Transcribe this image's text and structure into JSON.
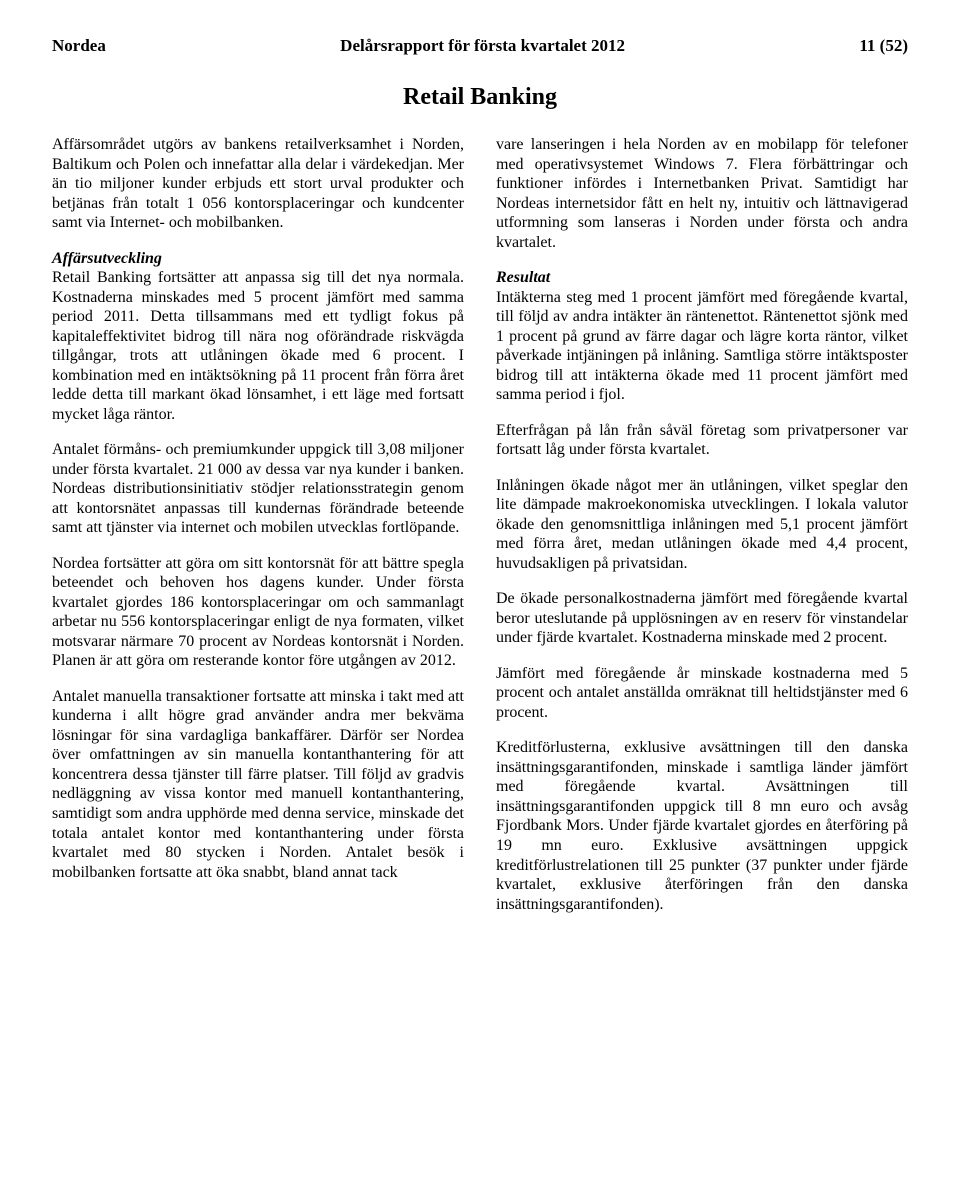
{
  "header": {
    "company": "Nordea",
    "title": "Delårsrapport för första kvartalet 2012",
    "page": "11 (52)"
  },
  "section_title": "Retail Banking",
  "left": {
    "p1": "Affärsområdet utgörs av bankens retailverksamhet i Norden, Baltikum och Polen och innefattar alla delar i värdekedjan. Mer än tio miljoner kunder erbjuds ett stort urval produkter och betjänas från totalt 1 056 kontorsplaceringar och kundcenter samt via Internet- och mobilbanken.",
    "sub1": "Affärsutveckling",
    "p2": "Retail Banking fortsätter att anpassa sig till det nya normala. Kostnaderna minskades med 5 procent jämfört med samma period 2011. Detta tillsammans med ett tydligt fokus på kapitaleffektivitet bidrog till nära nog oförändrade riskvägda tillgångar, trots att utlåningen ökade med 6 procent. I kombination med en intäktsökning på 11 procent från förra året ledde detta till markant ökad lönsamhet, i ett läge med fortsatt mycket låga räntor.",
    "p3": "Antalet förmåns- och premiumkunder uppgick till 3,08 miljoner under första kvartalet. 21 000 av dessa var nya kunder i banken. Nordeas distributionsinitiativ stödjer relationsstrategin genom att kontorsnätet anpassas till kundernas förändrade beteende samt att tjänster via internet och mobilen utvecklas fortlöpande.",
    "p4": "Nordea fortsätter att göra om sitt kontorsnät för att bättre spegla beteendet och behoven hos dagens kunder. Under första kvartalet gjordes 186 kontorsplaceringar om och sammanlagt arbetar nu 556 kontorsplaceringar enligt de nya formaten, vilket motsvarar närmare 70 procent av Nordeas kontorsnät i Norden. Planen är att göra om resterande kontor före utgången av 2012.",
    "p5": "Antalet manuella transaktioner fortsatte att minska i takt med att kunderna i allt högre grad använder andra mer bekväma lösningar för sina vardagliga bankaffärer. Därför ser Nordea över omfattningen av sin manuella kontanthantering för att koncentrera dessa tjänster till färre platser. Till följd av gradvis nedläggning av vissa kontor med manuell kontanthantering, samtidigt som andra upphörde med denna service, minskade det totala antalet kontor med kontanthantering under första kvartalet med 80 stycken i Norden. Antalet besök i mobilbanken fortsatte att öka snabbt, bland annat tack"
  },
  "right": {
    "p1": "vare lanseringen i hela Norden av en mobilapp för telefoner med operativsystemet Windows 7. Flera förbättringar och funktioner infördes i Internetbanken Privat. Samtidigt har Nordeas internetsidor fått en helt ny, intuitiv och lättnavigerad utformning som lanseras i Norden under första och andra kvartalet.",
    "sub1": "Resultat",
    "p2": "Intäkterna steg med 1 procent jämfört med föregående kvartal, till följd av andra intäkter än räntenettot. Räntenettot sjönk med 1 procent på grund av färre dagar och lägre korta räntor, vilket påverkade intjäningen på inlåning. Samtliga större intäktsposter bidrog till att intäkterna ökade med 11 procent jämfört med samma period i fjol.",
    "p3": "Efterfrågan på lån från såväl företag som privatpersoner var fortsatt låg under första kvartalet.",
    "p4": "Inlåningen ökade något mer än utlåningen, vilket speglar den lite dämpade makroekonomiska utvecklingen. I lokala valutor ökade den genomsnittliga inlåningen med 5,1 procent jämfört med förra året, medan utlåningen ökade med 4,4 procent, huvudsakligen på privatsidan.",
    "p5": "De ökade personalkostnaderna jämfört med föregående kvartal beror uteslutande på upplösningen av en reserv för vinstandelar under fjärde kvartalet. Kostnaderna minskade med 2 procent.",
    "p6": "Jämfört med föregående år minskade kostnaderna med 5 procent och antalet anställda omräknat till heltidstjänster med 6 procent.",
    "p7": "Kreditförlusterna, exklusive avsättningen till den danska insättningsgarantifonden, minskade i samtliga länder jämfört med föregående kvartal. Avsättningen till insättningsgarantifonden uppgick till 8 mn euro och avsåg Fjordbank Mors. Under fjärde kvartalet gjordes en återföring på 19 mn euro. Exklusive avsättningen uppgick kreditförlustrelationen till 25 punkter (37 punkter under fjärde kvartalet, exklusive återföringen från den danska insättningsgarantifonden)."
  }
}
